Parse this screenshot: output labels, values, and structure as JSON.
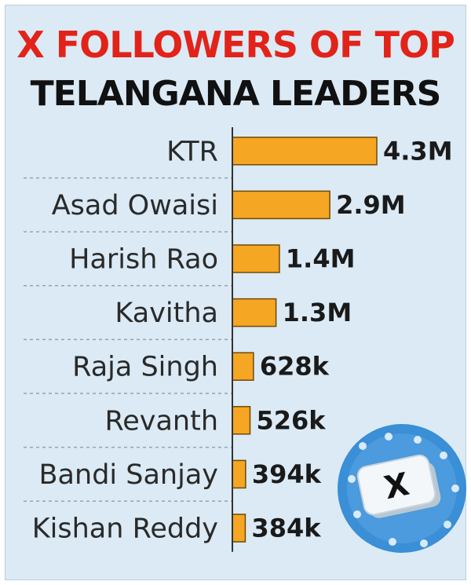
{
  "title": {
    "line1": "X FOLLOWERS OF TOP",
    "line2": "TELANGANA LEADERS"
  },
  "chart_data": {
    "type": "bar",
    "orientation": "horizontal",
    "title": "X FOLLOWERS OF TOP TELANGANA LEADERS",
    "categories": [
      "KTR",
      "Asad Owaisi",
      "Harish Rao",
      "Kavitha",
      "Raja Singh",
      "Revanth",
      "Bandi Sanjay",
      "Kishan Reddy"
    ],
    "values": [
      4300000,
      2900000,
      1400000,
      1300000,
      628000,
      526000,
      394000,
      384000
    ],
    "value_labels": [
      "4.3M",
      "2.9M",
      "1.4M",
      "1.3M",
      "628k",
      "526k",
      "394k",
      "384k"
    ],
    "xlim": [
      0,
      4300000
    ],
    "grid": false,
    "bar_color": "#f5a623"
  },
  "decor": {
    "badge_icon": "x-logo-icon",
    "badge_color": "#3a8fd6"
  }
}
